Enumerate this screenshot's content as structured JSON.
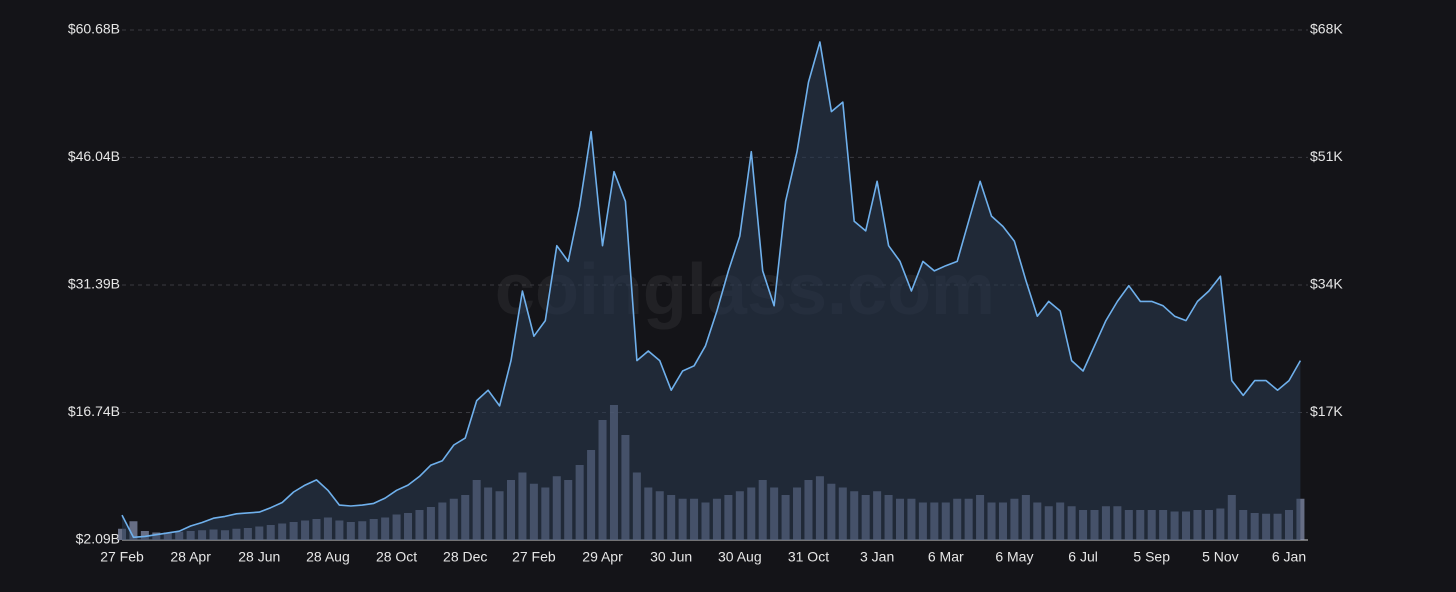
{
  "chart_data": {
    "type": "line",
    "watermark": "coinglass.com",
    "categories": [
      "27 Feb",
      null,
      null,
      null,
      null,
      null,
      "28 Apr",
      null,
      null,
      null,
      null,
      null,
      "28 Jun",
      null,
      null,
      null,
      null,
      null,
      "28 Aug",
      null,
      null,
      null,
      null,
      null,
      "28 Oct",
      null,
      null,
      null,
      null,
      null,
      "28 Dec",
      null,
      null,
      null,
      null,
      null,
      "27 Feb",
      null,
      null,
      null,
      null,
      null,
      "29 Apr",
      null,
      null,
      null,
      null,
      null,
      "30 Jun",
      null,
      null,
      null,
      null,
      null,
      "30 Aug",
      null,
      null,
      null,
      null,
      null,
      "31 Oct",
      null,
      null,
      null,
      null,
      null,
      "3 Jan",
      null,
      null,
      null,
      null,
      null,
      "6 Mar",
      null,
      null,
      null,
      null,
      null,
      "6 May",
      null,
      null,
      null,
      null,
      null,
      "6 Jul",
      null,
      null,
      null,
      null,
      null,
      "5 Sep",
      null,
      null,
      null,
      null,
      null,
      "5 Nov",
      null,
      null,
      null,
      null,
      null,
      "6 Jan",
      null
    ],
    "series": [
      {
        "type": "line",
        "color": "#6fb0ec",
        "values": [
          4.95,
          2.4,
          2.5,
          2.7,
          2.9,
          3.1,
          3.7,
          4.1,
          4.6,
          4.8,
          5.1,
          5.2,
          5.3,
          5.8,
          6.4,
          7.6,
          8.4,
          9.0,
          7.8,
          6.1,
          6.0,
          6.1,
          6.3,
          6.9,
          7.8,
          8.4,
          9.4,
          10.7,
          11.2,
          13.0,
          13.8,
          18.1,
          19.3,
          17.5,
          22.7,
          30.7,
          25.5,
          27.3,
          35.9,
          34.1,
          40.4,
          49.0,
          35.9,
          44.4,
          41.0,
          22.7,
          23.8,
          22.7,
          19.3,
          21.5,
          22.1,
          24.4,
          28.4,
          33.0,
          37.0,
          46.7,
          33.0,
          29.0,
          41.0,
          46.7,
          54.7,
          59.3,
          51.3,
          52.4,
          38.7,
          37.6,
          43.3,
          35.9,
          34.1,
          30.7,
          34.1,
          33.0,
          33.6,
          34.1,
          38.7,
          43.3,
          39.3,
          38.1,
          36.4,
          31.9,
          27.8,
          29.5,
          28.4,
          22.7,
          21.5,
          24.4,
          27.3,
          29.5,
          31.3,
          29.5,
          29.5,
          29.0,
          27.8,
          27.3,
          29.5,
          30.7,
          32.4,
          20.4,
          18.7,
          20.4,
          20.4,
          19.3,
          20.4,
          22.7
        ]
      },
      {
        "type": "bar",
        "axis": "y2",
        "color": "#8a94b4",
        "values": [
          1500,
          2500,
          1200,
          1000,
          1000,
          1100,
          1200,
          1300,
          1400,
          1300,
          1500,
          1600,
          1800,
          2000,
          2200,
          2400,
          2600,
          2800,
          3000,
          2600,
          2400,
          2500,
          2800,
          3000,
          3400,
          3600,
          4000,
          4400,
          5000,
          5500,
          6000,
          8000,
          7000,
          6500,
          8000,
          9000,
          7500,
          7000,
          8500,
          8000,
          10000,
          12000,
          16000,
          18000,
          14000,
          9000,
          7000,
          6500,
          6000,
          5500,
          5500,
          5000,
          5500,
          6000,
          6500,
          7000,
          8000,
          7000,
          6000,
          7000,
          8000,
          8500,
          7500,
          7000,
          6500,
          6000,
          6500,
          6000,
          5500,
          5500,
          5000,
          5000,
          5000,
          5500,
          5500,
          6000,
          5000,
          5000,
          5500,
          6000,
          5000,
          4500,
          5000,
          4500,
          4000,
          4000,
          4500,
          4500,
          4000,
          4000,
          4000,
          4000,
          3800,
          3800,
          4000,
          4000,
          4200,
          6000,
          4000,
          3600,
          3500,
          3500,
          4000,
          5500
        ]
      }
    ],
    "ylim": [
      2.09,
      60.68
    ],
    "yticks": [
      {
        "value": 2.09,
        "label": "$2.09B"
      },
      {
        "value": 16.74,
        "label": "$16.74B"
      },
      {
        "value": 31.39,
        "label": "$31.39B"
      },
      {
        "value": 46.04,
        "label": "$46.04B"
      },
      {
        "value": 60.68,
        "label": "$60.68B"
      }
    ],
    "y2lim": [
      0,
      68000
    ],
    "y2ticks": [
      {
        "value": 17000,
        "label": "$17K"
      },
      {
        "value": 34000,
        "label": "$34K"
      },
      {
        "value": 51000,
        "label": "$51K"
      },
      {
        "value": 68000,
        "label": "$68K"
      }
    ],
    "grid": true
  }
}
